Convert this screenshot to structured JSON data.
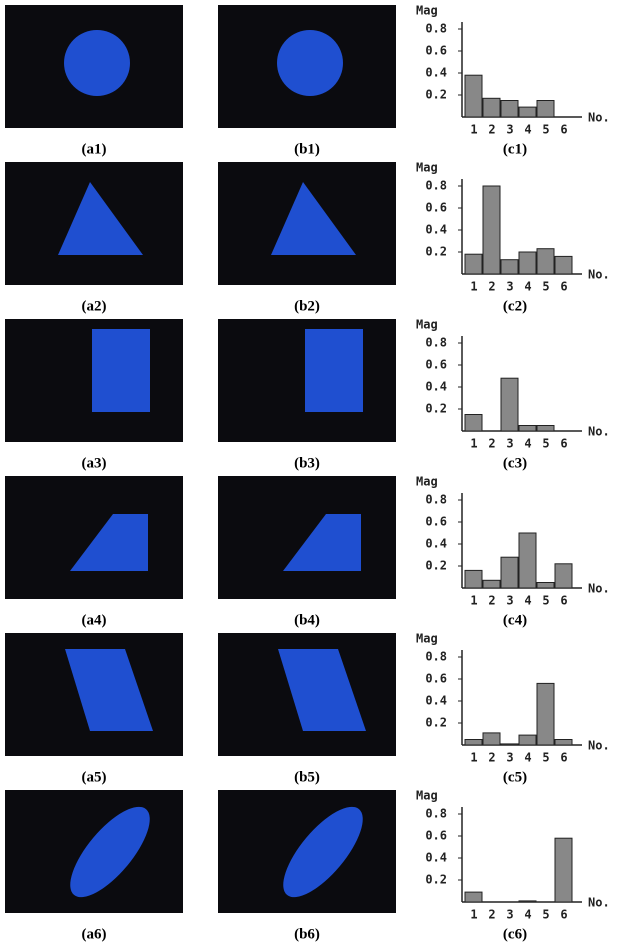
{
  "rows": [
    {
      "a": "(a1)",
      "b": "(b1)"
    },
    {
      "a": "(a2)",
      "b": "(b2)"
    },
    {
      "a": "(a3)",
      "b": "(b3)"
    },
    {
      "a": "(a4)",
      "b": "(b4)"
    },
    {
      "a": "(a5)",
      "b": "(b5)"
    },
    {
      "a": "(a6)",
      "b": "(b6)"
    }
  ],
  "chart_data": [
    {
      "type": "bar",
      "y_label": "Mag",
      "x_label": "No.",
      "caption": "(c1)",
      "categories": [
        "1",
        "2",
        "3",
        "4",
        "5",
        "6"
      ],
      "values": [
        0.38,
        0.17,
        0.15,
        0.09,
        0.15,
        0
      ],
      "color": "#888888",
      "ylim": [
        0,
        0.9
      ],
      "yticks": [
        0.2,
        0.4,
        0.6,
        0.8
      ]
    },
    {
      "type": "bar",
      "y_label": "Mag",
      "x_label": "No.",
      "caption": "(c2)",
      "categories": [
        "1",
        "2",
        "3",
        "4",
        "5",
        "6"
      ],
      "values": [
        0.18,
        0.8,
        0.13,
        0.2,
        0.23,
        0.16
      ],
      "color": "#888888",
      "ylim": [
        0,
        0.9
      ],
      "yticks": [
        0.2,
        0.4,
        0.6,
        0.8
      ]
    },
    {
      "type": "bar",
      "y_label": "Mag",
      "x_label": "No.",
      "caption": "(c3)",
      "categories": [
        "1",
        "2",
        "3",
        "4",
        "5",
        "6"
      ],
      "values": [
        0.15,
        0,
        0.48,
        0.05,
        0.05,
        0
      ],
      "color": "#888888",
      "ylim": [
        0,
        0.9
      ],
      "yticks": [
        0.2,
        0.4,
        0.6,
        0.8
      ]
    },
    {
      "type": "bar",
      "y_label": "Mag",
      "x_label": "No.",
      "caption": "(c4)",
      "categories": [
        "1",
        "2",
        "3",
        "4",
        "5",
        "6"
      ],
      "values": [
        0.16,
        0.07,
        0.28,
        0.5,
        0.05,
        0.22
      ],
      "color": "#888888",
      "ylim": [
        0,
        0.9
      ],
      "yticks": [
        0.2,
        0.4,
        0.6,
        0.8
      ]
    },
    {
      "type": "bar",
      "y_label": "Mag",
      "x_label": "No.",
      "caption": "(c5)",
      "categories": [
        "1",
        "2",
        "3",
        "4",
        "5",
        "6"
      ],
      "values": [
        0.05,
        0.11,
        0.01,
        0.09,
        0.56,
        0.05
      ],
      "color": "#888888",
      "ylim": [
        0,
        0.9
      ],
      "yticks": [
        0.2,
        0.4,
        0.6,
        0.8
      ]
    },
    {
      "type": "bar",
      "y_label": "Mag",
      "x_label": "No.",
      "caption": "(c6)",
      "categories": [
        "1",
        "2",
        "3",
        "4",
        "5",
        "6"
      ],
      "values": [
        0.09,
        0,
        0,
        0.01,
        0,
        0.58
      ],
      "color": "#888888",
      "ylim": [
        0,
        0.9
      ],
      "yticks": [
        0.2,
        0.4,
        0.6,
        0.8
      ]
    }
  ]
}
